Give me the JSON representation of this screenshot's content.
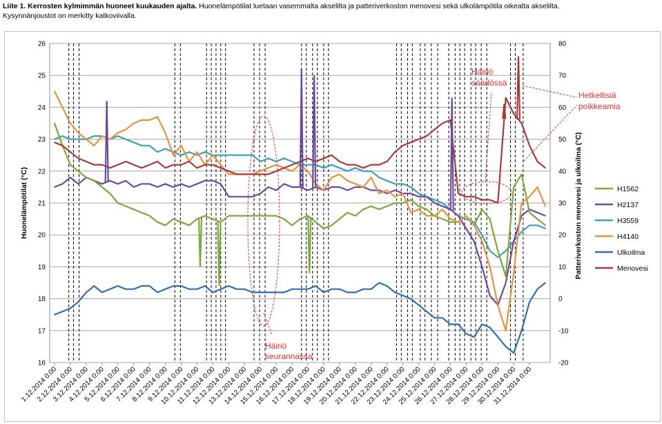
{
  "caption": {
    "bold": "Liite 1. Kerrosten kylmimmän huoneet kuukauden ajalta.",
    "rest": " Huonelämpötilat luetaan vasemmalta akselilta ja patteriverkoston menovesi sekä ulkolämpötila oikealta akselilta.",
    "line2": "Kysynnänjoustot on merkitty katkoviivalla."
  },
  "chart_data": {
    "type": "line",
    "xlabel": "",
    "ylabel": "Huonelämpötilat (°C)",
    "y2label": "Patteriverkoston menovesi ja ulkoilma (°C)",
    "ylim": [
      16,
      26
    ],
    "y2lim": [
      -20,
      80
    ],
    "yticks": [
      "16",
      "17",
      "18",
      "19",
      "20",
      "21",
      "22",
      "23",
      "24",
      "25",
      "26"
    ],
    "y2ticks": [
      "-20",
      "-10",
      "0",
      "10",
      "20",
      "30",
      "40",
      "50",
      "60",
      "70",
      "80"
    ],
    "categories": [
      "1.12.2014 0:00",
      "2.12.2014 0:00",
      "3.12.2014 0:00",
      "4.12.2014 0:00",
      "5.12.2014 0:00",
      "6.12.2014 0:00",
      "7.12.2014 0:00",
      "8.12.2014 0:00",
      "9.12.2014 0:00",
      "10.12.2014 0:00",
      "11.12.2014 0:00",
      "12.12.2014 0:00",
      "13.12.2014 0:00",
      "14.12.2014 0:00",
      "15.12.2014 0:00",
      "16.12.2014 0:00",
      "17.12.2014 0:00",
      "18.12.2014 0:00",
      "19.12.2014 0:00",
      "20.12.2014 0:00",
      "21.12.2014 0:00",
      "22.12.2014 0:00",
      "23.12.2014 0:00",
      "24.12.2014 0:00",
      "25.12.2014 0:00",
      "26.12.2014 0:00",
      "27.12.2014 0:00",
      "28.12.2014 0:00",
      "29.12.2014 0:00",
      "30.12.2014 0:00",
      "31.12.2014 0:00"
    ],
    "legend_position": "right",
    "grid": true,
    "series": [
      {
        "name": "H1562",
        "axis": "left",
        "color": "#7aa83a",
        "x": [
          0,
          0.5,
          1,
          1.5,
          2,
          2.5,
          3,
          3.5,
          4,
          4.5,
          5,
          5.5,
          6,
          6.5,
          7,
          7.5,
          8,
          8.5,
          9,
          9.5,
          10,
          10.5,
          11,
          11.5,
          12,
          12.5,
          13,
          13.5,
          14,
          14.5,
          15,
          15.5,
          16,
          16.5,
          17,
          17.5,
          18,
          18.5,
          19,
          19.5,
          20,
          20.5,
          21,
          21.5,
          22,
          22.5,
          23,
          23.5,
          24,
          24.5,
          25,
          25.5,
          26,
          26.5,
          27,
          27.5,
          28,
          28.5,
          29,
          29.5,
          30,
          30.5,
          31
        ],
        "values": [
          23.5,
          22.8,
          22.2,
          22.0,
          21.8,
          21.7,
          21.5,
          21.3,
          21.0,
          20.9,
          20.8,
          20.7,
          20.6,
          20.4,
          20.3,
          20.5,
          20.4,
          20.3,
          20.5,
          20.6,
          20.5,
          20.4,
          20.6,
          20.6,
          20.6,
          20.6,
          20.6,
          20.6,
          20.6,
          20.5,
          20.3,
          20.5,
          20.6,
          20.4,
          20.2,
          20.3,
          20.5,
          20.7,
          20.6,
          20.8,
          20.9,
          20.8,
          20.9,
          21.0,
          21.0,
          21.1,
          20.9,
          20.8,
          20.6,
          20.5,
          20.4,
          20.4,
          20.6,
          20.3,
          20.8,
          20.5,
          19.5,
          18.7,
          21.5,
          21.9,
          20.7,
          20.5,
          20.3
        ]
      },
      {
        "name": "H2137",
        "axis": "left",
        "color": "#6a4a9a",
        "x": [
          0,
          0.5,
          1,
          1.5,
          2,
          2.5,
          3,
          3.5,
          4,
          4.5,
          5,
          5.5,
          6,
          6.5,
          7,
          7.5,
          8,
          8.5,
          9,
          9.5,
          10,
          10.5,
          11,
          11.5,
          12,
          12.5,
          13,
          13.5,
          14,
          14.5,
          15,
          15.5,
          16,
          16.5,
          17,
          17.5,
          18,
          18.5,
          19,
          19.5,
          20,
          20.5,
          21,
          21.5,
          22,
          22.5,
          23,
          23.5,
          24,
          24.5,
          25,
          25.5,
          26,
          26.5,
          27,
          27.5,
          28,
          28.5,
          29,
          29.5,
          30,
          30.5,
          31
        ],
        "values": [
          21.5,
          21.6,
          21.8,
          21.6,
          21.8,
          21.7,
          21.6,
          21.7,
          21.6,
          21.7,
          21.5,
          21.6,
          21.6,
          21.5,
          21.6,
          21.5,
          21.6,
          21.5,
          21.6,
          21.7,
          21.7,
          21.6,
          21.2,
          21.2,
          21.2,
          21.2,
          21.3,
          21.5,
          21.4,
          21.6,
          21.5,
          21.5,
          21.4,
          21.5,
          21.4,
          21.5,
          21.5,
          21.4,
          21.5,
          21.5,
          21.4,
          21.4,
          21.3,
          21.4,
          21.3,
          21.3,
          21.2,
          21.2,
          21.0,
          20.9,
          20.8,
          20.6,
          20.2,
          19.8,
          19.0,
          18.1,
          17.8,
          18.5,
          19.8,
          20.6,
          20.8,
          20.7,
          20.6
        ]
      },
      {
        "name": "H3559",
        "axis": "left",
        "color": "#3aa0b8",
        "x": [
          0,
          0.5,
          1,
          1.5,
          2,
          2.5,
          3,
          3.5,
          4,
          4.5,
          5,
          5.5,
          6,
          6.5,
          7,
          7.5,
          8,
          8.5,
          9,
          9.5,
          10,
          10.5,
          11,
          11.5,
          12,
          12.5,
          13,
          13.5,
          14,
          14.5,
          15,
          15.5,
          16,
          16.5,
          17,
          17.5,
          18,
          18.5,
          19,
          19.5,
          20,
          20.5,
          21,
          21.5,
          22,
          22.5,
          23,
          23.5,
          24,
          24.5,
          25,
          25.5,
          26,
          26.5,
          27,
          27.5,
          28,
          28.5,
          29,
          29.5,
          30,
          30.5,
          31
        ],
        "values": [
          23.0,
          23.1,
          23.0,
          23.0,
          23.0,
          23.1,
          23.1,
          23.0,
          23.1,
          23.0,
          22.9,
          22.8,
          22.8,
          22.6,
          22.7,
          22.6,
          22.5,
          22.6,
          22.5,
          22.6,
          22.5,
          22.5,
          22.5,
          22.5,
          22.5,
          22.5,
          22.3,
          22.4,
          22.3,
          22.4,
          22.3,
          22.2,
          22.2,
          22.2,
          22.1,
          22.2,
          22.1,
          22.0,
          22.1,
          22.0,
          22.0,
          21.8,
          21.7,
          21.6,
          21.6,
          21.5,
          21.3,
          21.2,
          21.1,
          21.0,
          20.8,
          20.6,
          20.5,
          20.4,
          20.0,
          19.5,
          19.3,
          19.5,
          19.8,
          20.1,
          20.3,
          20.3,
          20.2
        ]
      },
      {
        "name": "H4140",
        "axis": "left",
        "color": "#e8913a",
        "x": [
          0,
          0.5,
          1,
          1.5,
          2,
          2.5,
          3,
          3.5,
          4,
          4.5,
          5,
          5.5,
          6,
          6.5,
          7,
          7.5,
          8,
          8.5,
          9,
          9.5,
          10,
          10.5,
          11,
          11.5,
          12,
          12.5,
          13,
          13.5,
          14,
          14.5,
          15,
          15.5,
          16,
          16.5,
          17,
          17.5,
          18,
          18.5,
          19,
          19.5,
          20,
          20.5,
          21,
          21.5,
          22,
          22.5,
          23,
          23.5,
          24,
          24.5,
          25,
          25.5,
          26,
          26.5,
          27,
          27.5,
          28,
          28.5,
          29,
          29.5,
          30,
          30.5,
          31
        ],
        "values": [
          24.5,
          24.0,
          23.5,
          23.2,
          23.0,
          22.8,
          23.1,
          23.0,
          23.2,
          23.3,
          23.5,
          23.6,
          23.6,
          23.7,
          23.2,
          22.5,
          22.8,
          22.3,
          22.6,
          22.2,
          22.5,
          22.2,
          21.9,
          21.9,
          21.9,
          21.9,
          22.0,
          22.1,
          22.2,
          22.1,
          22.0,
          22.2,
          22.0,
          21.6,
          21.4,
          21.8,
          21.9,
          21.7,
          21.6,
          21.5,
          21.8,
          21.3,
          21.4,
          21.2,
          21.3,
          20.7,
          20.8,
          20.6,
          20.6,
          20.8,
          20.5,
          20.4,
          20.6,
          20.3,
          19.8,
          19.0,
          17.8,
          17.0,
          18.8,
          21.0,
          21.2,
          21.5,
          20.9
        ]
      },
      {
        "name": "Ulkoilma",
        "axis": "right",
        "color": "#2f6eb0",
        "x": [
          0,
          0.5,
          1,
          1.5,
          2,
          2.5,
          3,
          3.5,
          4,
          4.5,
          5,
          5.5,
          6,
          6.5,
          7,
          7.5,
          8,
          8.5,
          9,
          9.5,
          10,
          10.5,
          11,
          11.5,
          12,
          12.5,
          13,
          13.5,
          14,
          14.5,
          15,
          15.5,
          16,
          16.5,
          17,
          17.5,
          18,
          18.5,
          19,
          19.5,
          20,
          20.5,
          21,
          21.5,
          22,
          22.5,
          23,
          23.5,
          24,
          24.5,
          25,
          25.5,
          26,
          26.5,
          27,
          27.5,
          28,
          28.5,
          29,
          29.5,
          30,
          30.5,
          31
        ],
        "values": [
          -5,
          -4,
          -3,
          -1,
          2,
          4,
          2,
          3,
          4,
          3,
          3,
          4,
          4,
          2,
          3,
          4,
          4,
          3,
          3,
          4,
          2,
          3,
          4,
          3,
          3,
          2,
          2,
          2,
          2,
          2,
          3,
          3,
          3,
          4,
          2,
          3,
          3,
          2,
          2,
          3,
          3,
          5,
          4,
          2,
          1,
          0,
          -2,
          -4,
          -6,
          -6,
          -8,
          -8,
          -11,
          -12,
          -8,
          -9,
          -12,
          -15,
          -17,
          -10,
          -1,
          3,
          5
        ]
      },
      {
        "name": "Menovesi",
        "axis": "right",
        "color": "#a83a3a",
        "x": [
          0,
          0.5,
          1,
          1.5,
          2,
          2.5,
          3,
          3.5,
          4,
          4.5,
          5,
          5.5,
          6,
          6.5,
          7,
          7.5,
          8,
          8.5,
          9,
          9.5,
          10,
          10.5,
          11,
          11.5,
          12,
          12.5,
          13,
          13.5,
          14,
          14.5,
          15,
          15.5,
          16,
          16.5,
          17,
          17.5,
          18,
          18.5,
          19,
          19.5,
          20,
          20.5,
          21,
          21.5,
          22,
          22.5,
          23,
          23.5,
          24,
          24.5,
          25,
          25.5,
          26,
          26.5,
          27,
          27.5,
          28,
          28.5,
          29,
          29.5,
          30,
          30.5,
          31
        ],
        "values": [
          49,
          48,
          46,
          44,
          43,
          42,
          42,
          41,
          42,
          43,
          42,
          41,
          42,
          43,
          41,
          42,
          42,
          43,
          41,
          42,
          42,
          41,
          40,
          39,
          39,
          39,
          39,
          39,
          40,
          41,
          42,
          43,
          44,
          43,
          44,
          45,
          43,
          42,
          42,
          41,
          42,
          42,
          43,
          46,
          48,
          49,
          50,
          51,
          53,
          55,
          56,
          33,
          32,
          32,
          31,
          31,
          30,
          63,
          58,
          55,
          48,
          43,
          41
        ]
      }
    ],
    "spikes": [
      {
        "series": "H2137",
        "x": 3.3,
        "value": 24.2
      },
      {
        "series": "H2137",
        "x": 15.6,
        "value": 25.2
      },
      {
        "series": "H2137",
        "x": 16.4,
        "value": 25.0
      },
      {
        "series": "H2137",
        "x": 25.1,
        "value": 24.3
      },
      {
        "series": "H1562",
        "x": 9.2,
        "value": 19.0
      },
      {
        "series": "H1562",
        "x": 10.4,
        "value": 18.4
      },
      {
        "series": "H1562",
        "x": 16.1,
        "value": 18.8
      },
      {
        "series": "Menovesi",
        "x": 29.3,
        "value": 76
      },
      {
        "series": "Menovesi",
        "x": 28.4,
        "value": 61
      }
    ],
    "demand_response_x": [
      0.9,
      1.2,
      1.55,
      7.6,
      7.95,
      9.6,
      9.9,
      10.2,
      10.5,
      10.8,
      12.6,
      12.95,
      13.3,
      15.6,
      15.9,
      16.3,
      16.6,
      17.0,
      17.3,
      21.6,
      21.9,
      22.3,
      22.6,
      23.1,
      23.4,
      23.8,
      24.2,
      24.9,
      25.3,
      25.6,
      25.9,
      26.3,
      26.6,
      26.95,
      27.3,
      28.8,
      29.1,
      29.6
    ],
    "annotations": [
      {
        "text": "Häiriö",
        "text2": "seurannassa",
        "color": "#e03030"
      },
      {
        "text": "Häiriö",
        "text2": "säädössä",
        "color": "#e03030"
      },
      {
        "text": "Hetkellisiä",
        "text2": "poikkeamia",
        "color": "#e03030"
      }
    ]
  }
}
